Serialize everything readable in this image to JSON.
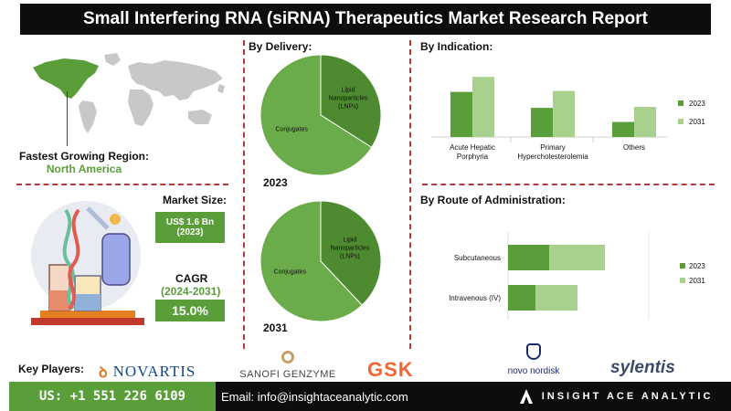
{
  "header": {
    "title": "Small Interfering RNA (siRNA) Therapeutics Market Research Report"
  },
  "region": {
    "label": "Fastest Growing Region:",
    "value": "North America"
  },
  "market_size": {
    "label": "Market Size:",
    "value_line1": "US$ 1.6 Bn",
    "value_line2": "(2023)"
  },
  "cagr": {
    "label": "CAGR",
    "period": "(2024-2031)",
    "value": "15.0%"
  },
  "colors": {
    "dark_green": "#5a9e3a",
    "light_green": "#a9d18e",
    "pie_dark": "#4e8a2f",
    "pie_light": "#6aab4a",
    "accent_red": "#b23a3a"
  },
  "chart_data": [
    {
      "type": "pie",
      "title": "By Delivery:",
      "year": "2023",
      "slices": [
        {
          "label": "Lipid Nanoparticles (LNPs)",
          "label_lines": [
            "Lipid",
            "Nanoparticles",
            "(LNPs)"
          ],
          "value": 34
        },
        {
          "label": "Conjugates",
          "label_lines": [
            "Conjugates"
          ],
          "value": 66
        }
      ]
    },
    {
      "type": "pie",
      "year": "2031",
      "slices": [
        {
          "label": "Lipid Nanoparticles (LNPs)",
          "label_lines": [
            "Lipid",
            "Nanoparticles",
            "(LNPs)"
          ],
          "value": 38
        },
        {
          "label": "Conjugates",
          "label_lines": [
            "Conjugates"
          ],
          "value": 62
        }
      ]
    },
    {
      "type": "bar",
      "title": "By Indication:",
      "categories": [
        "Acute Hepatic Porphyria",
        "Primary Hypercholesterolemia",
        "Others"
      ],
      "category_lines": [
        [
          "Acute Hepatic",
          "Porphyria"
        ],
        [
          "Primary",
          "Hypercholesterolemia"
        ],
        [
          "Others"
        ]
      ],
      "series": [
        {
          "name": "2023",
          "values": [
            48,
            31,
            16
          ]
        },
        {
          "name": "2031",
          "values": [
            64,
            49,
            32
          ]
        }
      ],
      "ylim": [
        0,
        70
      ],
      "legend": "right"
    },
    {
      "type": "bar",
      "orientation": "horizontal",
      "stacked": true,
      "title": "By Route of Administration:",
      "categories": [
        "Subcutaneous",
        "Intravenous (IV)"
      ],
      "series": [
        {
          "name": "2023",
          "values": [
            45,
            30
          ]
        },
        {
          "name": "2031",
          "values": [
            61,
            46
          ]
        }
      ],
      "xlim": [
        0,
        150
      ],
      "legend": "right"
    }
  ],
  "key_players": {
    "label": "Key Players:",
    "logos": [
      "NOVARTIS",
      "SANOFI GENZYME",
      "GSK",
      "novo nordisk",
      "sylentis"
    ]
  },
  "footer": {
    "phone": "US: +1 551 226 6109",
    "email": "Email: info@insightaceanalytic.com",
    "brand": "INSIGHT ACE ANALYTIC"
  }
}
